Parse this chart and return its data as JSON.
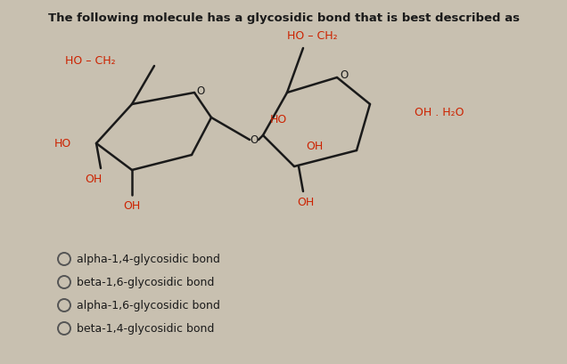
{
  "title": "The following molecule has a glycosidic bond that is best described as",
  "title_fontsize": 9.5,
  "title_color": "#1a1a1a",
  "background_color": "#c8c0b0",
  "molecule_color": "#1a1a1a",
  "label_color": "#cc2200",
  "options": [
    "alpha-1,4-glycosidic bond",
    "beta-1,6-glycosidic bond",
    "alpha-1,6-glycosidic bond",
    "beta-1,4-glycosidic bond"
  ],
  "option_fontsize": 9.0,
  "option_color": "#1a1a1a",
  "lw": 1.8
}
